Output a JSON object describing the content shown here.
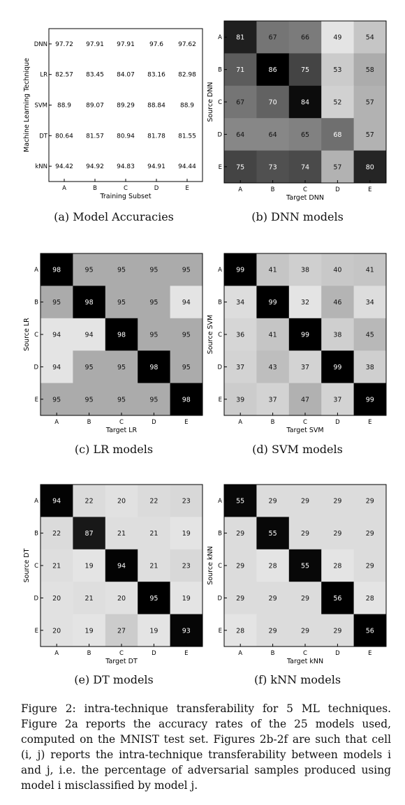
{
  "chart_data": [
    {
      "type": "table",
      "id": "a",
      "subcaption": "(a) Model Accuracies",
      "xlabel": "Training Subset",
      "ylabel": "Machine Learning Technique",
      "columns": [
        "A",
        "B",
        "C",
        "D",
        "E"
      ],
      "rows": [
        "DNN",
        "LR",
        "SVM",
        "DT",
        "kNN"
      ],
      "cells": [
        [
          "97.72",
          "97.91",
          "97.91",
          "97.6",
          "97.62"
        ],
        [
          "82.57",
          "83.45",
          "84.07",
          "83.16",
          "82.98"
        ],
        [
          "88.9",
          "89.07",
          "89.29",
          "88.84",
          "88.9"
        ],
        [
          "80.64",
          "81.57",
          "80.94",
          "81.78",
          "81.55"
        ],
        [
          "94.42",
          "94.92",
          "94.83",
          "94.91",
          "94.44"
        ]
      ]
    },
    {
      "type": "heatmap",
      "id": "b",
      "subcaption": "(b) DNN models",
      "xlabel": "Target DNN",
      "ylabel": "Source DNN",
      "categories": [
        "A",
        "B",
        "C",
        "D",
        "E"
      ],
      "values": [
        [
          81,
          67,
          66,
          49,
          54
        ],
        [
          71,
          86,
          75,
          53,
          58
        ],
        [
          67,
          70,
          84,
          52,
          57
        ],
        [
          64,
          64,
          65,
          68,
          57
        ],
        [
          75,
          73,
          74,
          57,
          80
        ]
      ]
    },
    {
      "type": "heatmap",
      "id": "c",
      "subcaption": "(c) LR models",
      "xlabel": "Target LR",
      "ylabel": "Source LR",
      "categories": [
        "A",
        "B",
        "C",
        "D",
        "E"
      ],
      "values": [
        [
          98,
          95,
          95,
          95,
          95
        ],
        [
          95,
          98,
          95,
          95,
          94
        ],
        [
          94,
          94,
          98,
          95,
          95
        ],
        [
          94,
          95,
          95,
          98,
          95
        ],
        [
          95,
          95,
          95,
          95,
          98
        ]
      ]
    },
    {
      "type": "heatmap",
      "id": "d",
      "subcaption": "(d) SVM models",
      "xlabel": "Target SVM",
      "ylabel": "Source SVM",
      "categories": [
        "A",
        "B",
        "C",
        "D",
        "E"
      ],
      "values": [
        [
          99,
          41,
          38,
          40,
          41
        ],
        [
          34,
          99,
          32,
          46,
          34
        ],
        [
          36,
          41,
          99,
          38,
          45
        ],
        [
          37,
          43,
          37,
          99,
          38
        ],
        [
          39,
          37,
          47,
          37,
          99
        ]
      ]
    },
    {
      "type": "heatmap",
      "id": "e",
      "subcaption": "(e) DT models",
      "xlabel": "Target DT",
      "ylabel": "Source DT",
      "categories": [
        "A",
        "B",
        "C",
        "D",
        "E"
      ],
      "values": [
        [
          94,
          22,
          20,
          22,
          23
        ],
        [
          22,
          87,
          21,
          21,
          19
        ],
        [
          21,
          19,
          94,
          21,
          23
        ],
        [
          20,
          21,
          20,
          95,
          19
        ],
        [
          20,
          19,
          27,
          19,
          93
        ]
      ]
    },
    {
      "type": "heatmap",
      "id": "f",
      "subcaption": "(f) kNN models",
      "xlabel": "Target kNN",
      "ylabel": "Source kNN",
      "categories": [
        "A",
        "B",
        "C",
        "D",
        "E"
      ],
      "values": [
        [
          55,
          29,
          29,
          29,
          29
        ],
        [
          29,
          55,
          29,
          29,
          29
        ],
        [
          29,
          28,
          55,
          28,
          29
        ],
        [
          29,
          29,
          29,
          56,
          28
        ],
        [
          28,
          29,
          29,
          29,
          56
        ]
      ]
    }
  ],
  "caption": "Figure 2: intra-technique transferability for 5 ML techniques. Figure 2a reports the accuracy rates of the 25 models used, computed on the MNIST test set. Figures 2b-2f are such that cell (i, j) reports the intra-technique transferability between models i and j, i.e. the percentage of adversarial samples produced using model i misclassified by model j."
}
